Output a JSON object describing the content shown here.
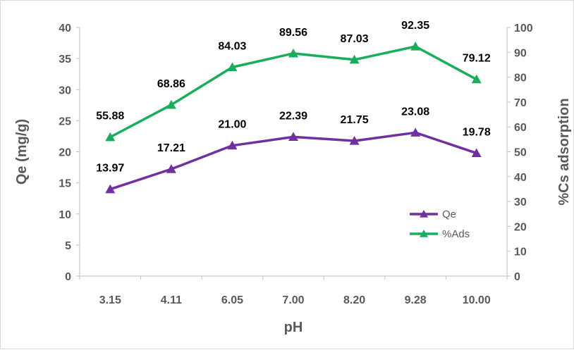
{
  "chart_data": {
    "type": "line",
    "categories": [
      "3.15",
      "4.11",
      "6.05",
      "7.00",
      "8.20",
      "9.28",
      "10.00"
    ],
    "xlabel": "pH",
    "ylabel": "Qe (mg/g)",
    "y2label": "%Cs adsorption",
    "ylim": [
      0,
      40
    ],
    "y2lim": [
      0,
      100
    ],
    "yticks": [
      "0",
      "5",
      "10",
      "15",
      "20",
      "25",
      "30",
      "35",
      "40"
    ],
    "y2ticks": [
      "0",
      "10",
      "20",
      "30",
      "40",
      "50",
      "60",
      "70",
      "80",
      "90",
      "100"
    ],
    "legend_position": "right, inside plot",
    "series": [
      {
        "name": "Qe",
        "axis": "left",
        "color": "#7030a0",
        "marker": "triangle",
        "values": [
          13.97,
          17.21,
          21.0,
          22.39,
          21.75,
          23.08,
          19.78
        ],
        "labels": [
          "13.97",
          "17.21",
          "21.00",
          "22.39",
          "21.75",
          "23.08",
          "19.78"
        ]
      },
      {
        "name": "%Ads",
        "axis": "right",
        "color": "#1aad5c",
        "marker": "triangle",
        "values": [
          55.88,
          68.86,
          84.03,
          89.56,
          87.03,
          92.35,
          79.12
        ],
        "labels": [
          "55.88",
          "68.86",
          "84.03",
          "89.56",
          "87.03",
          "92.35",
          "79.12"
        ]
      }
    ]
  }
}
